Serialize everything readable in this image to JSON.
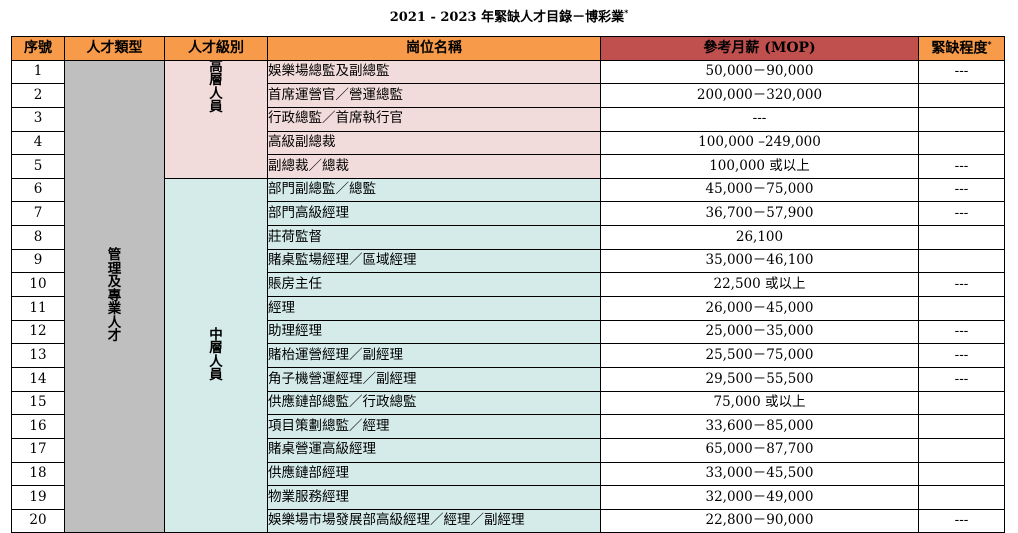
{
  "title": "2021 - 2023 年緊缺人才目錄－博彩業",
  "title_mark": "*",
  "headers": {
    "no": "序號",
    "type": "人才類型",
    "level": "人才級別",
    "position": "崗位名稱",
    "salary": "參考月薪 (MOP)",
    "shortage": "緊缺程度",
    "shortage_mark": "*"
  },
  "talent_type": "管理及專業人才",
  "levels": {
    "senior": "高層人員",
    "middle": "中層人員"
  },
  "rows": [
    {
      "no": "1",
      "position": "娛樂場總監及副總監",
      "salary": "50,000－90,000",
      "shortage": "---"
    },
    {
      "no": "2",
      "position": "首席運營官／營運總監",
      "salary": "200,000－320,000",
      "shortage": ""
    },
    {
      "no": "3",
      "position": "行政總監／首席執行官",
      "salary": "---",
      "shortage": ""
    },
    {
      "no": "4",
      "position": "高級副總裁",
      "salary": "100,000 –249,000",
      "shortage": ""
    },
    {
      "no": "5",
      "position": "副總裁／總裁",
      "salary": "100,000 或以上",
      "shortage": "---"
    },
    {
      "no": "6",
      "position": "部門副總監／總監",
      "salary": "45,000－75,000",
      "shortage": "---"
    },
    {
      "no": "7",
      "position": "部門高級經理",
      "salary": "36,700－57,900",
      "shortage": "---"
    },
    {
      "no": "8",
      "position": "莊荷監督",
      "salary": "26,100",
      "shortage": ""
    },
    {
      "no": "9",
      "position": "賭桌監場經理／區域經理",
      "salary": "35,000－46,100",
      "shortage": ""
    },
    {
      "no": "10",
      "position": "賬房主任",
      "salary": "22,500  或以上",
      "shortage": "---"
    },
    {
      "no": "11",
      "position": "經理",
      "salary": "26,000－45,000",
      "shortage": ""
    },
    {
      "no": "12",
      "position": "助理經理",
      "salary": "25,000－35,000",
      "shortage": "---"
    },
    {
      "no": "13",
      "position": "賭枱運營經理／副經理",
      "salary": "25,500－75,000",
      "shortage": "---"
    },
    {
      "no": "14",
      "position": "角子機營運經理／副經理",
      "salary": "29,500－55,500",
      "shortage": "---"
    },
    {
      "no": "15",
      "position": "供應鏈部總監／行政總監",
      "salary": "75,000 或以上",
      "shortage": ""
    },
    {
      "no": "16",
      "position": "項目策劃總監／經理",
      "salary": "33,600－85,000",
      "shortage": ""
    },
    {
      "no": "17",
      "position": "賭桌營運高級經理",
      "salary": "65,000－87,700",
      "shortage": ""
    },
    {
      "no": "18",
      "position": "供應鏈部經理",
      "salary": "33,000－45,500",
      "shortage": ""
    },
    {
      "no": "19",
      "position": "物業服務經理",
      "salary": "32,000－49,000",
      "shortage": ""
    },
    {
      "no": "20",
      "position": "娛樂場市場發展部高級經理／經理／副經理",
      "salary": "22,800－90,000",
      "shortage": "---"
    }
  ],
  "colors": {
    "header": "#f79a4a",
    "salary_header": "#c0504d",
    "type_fill": "#bfbfbf",
    "senior_fill": "#f2dcdb",
    "middle_fill": "#d4ebe9"
  }
}
